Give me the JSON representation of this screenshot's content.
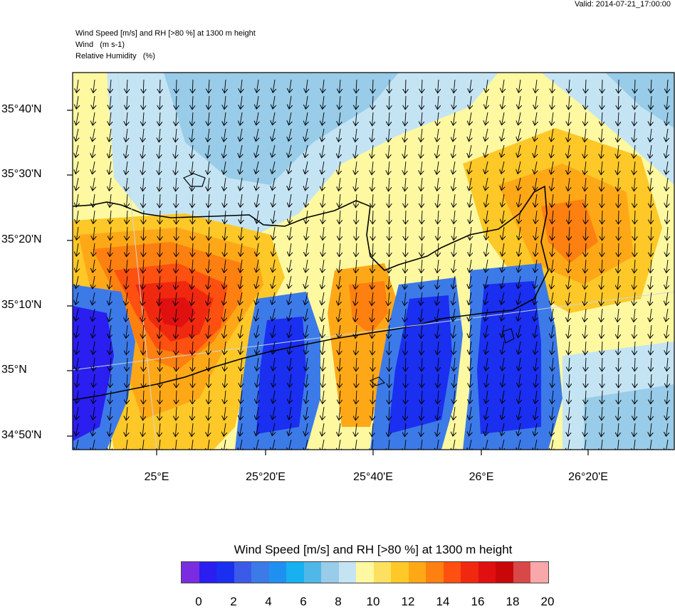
{
  "valid_text": "Valid: 2014-07-21_17:00:00",
  "header_lines": [
    "Wind Speed [m/s] and RH [>80 %] at 1300 m height",
    "Wind   (m s-1)",
    "Relative Humidity   (%)"
  ],
  "lat_labels": [
    "35°40'N",
    "35°30'N",
    "35°20'N",
    "35°10'N",
    "35°N",
    "34°50'N"
  ],
  "lon_labels": [
    "25°E",
    "25°20'E",
    "25°40'E",
    "26°E",
    "26°20'E"
  ],
  "colorbar": {
    "title": "Wind Speed [m/s] and RH [>80 %] at 1300 m height",
    "colors": [
      "#7a2de0",
      "#2a1ef0",
      "#1a2ff0",
      "#3c5ae8",
      "#3c7ae8",
      "#2090f0",
      "#18b0f0",
      "#50b8e8",
      "#98cce8",
      "#c4e4f4",
      "#fef8a0",
      "#fee060",
      "#fec828",
      "#fea818",
      "#fe8010",
      "#fe5010",
      "#f02810",
      "#e01010",
      "#c80808",
      "#d84848",
      "#f8a8a8"
    ],
    "labels": [
      "0",
      "2",
      "4",
      "6",
      "8",
      "10",
      "12",
      "14",
      "16",
      "18",
      "20"
    ]
  }
}
